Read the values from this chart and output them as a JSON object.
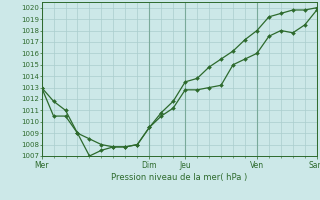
{
  "title": "Pression niveau de la mer( hPa )",
  "ylim": [
    1007,
    1020.5
  ],
  "yticks": [
    1007,
    1008,
    1009,
    1010,
    1011,
    1012,
    1013,
    1014,
    1015,
    1016,
    1017,
    1018,
    1019,
    1020
  ],
  "xlim": [
    0,
    23
  ],
  "xtick_labels": [
    "Mer",
    "Dim",
    "Jeu",
    "Ven",
    "Sam"
  ],
  "xtick_positions": [
    0,
    9,
    12,
    18,
    23
  ],
  "line1_x": [
    0,
    1,
    2,
    3,
    4,
    5,
    6,
    7,
    8,
    9,
    10,
    11,
    12,
    13,
    14,
    15,
    16,
    17,
    18,
    19,
    20,
    21,
    22,
    23
  ],
  "line1_y": [
    1013.0,
    1011.8,
    1011.0,
    1009.0,
    1008.5,
    1008.0,
    1007.8,
    1007.8,
    1008.0,
    1009.5,
    1010.5,
    1011.2,
    1012.8,
    1012.8,
    1013.0,
    1013.2,
    1015.0,
    1015.5,
    1016.0,
    1017.5,
    1018.0,
    1017.8,
    1018.5,
    1019.8
  ],
  "line2_x": [
    0,
    1,
    2,
    3,
    4,
    5,
    6,
    7,
    8,
    9,
    10,
    11,
    12,
    13,
    14,
    15,
    16,
    17,
    18,
    19,
    20,
    21,
    22,
    23
  ],
  "line2_y": [
    1013.0,
    1010.5,
    1010.5,
    1009.0,
    1007.0,
    1007.5,
    1007.8,
    1007.8,
    1008.0,
    1009.5,
    1010.8,
    1011.8,
    1013.5,
    1013.8,
    1014.8,
    1015.5,
    1016.2,
    1017.2,
    1018.0,
    1019.2,
    1019.5,
    1019.8,
    1019.8,
    1020.0
  ],
  "line_color": "#2d6a2d",
  "bg_color": "#cce8e8",
  "grid_color": "#aacece",
  "marker": "D",
  "marker_size": 2.0,
  "vlines": [
    0,
    9,
    12,
    18,
    23
  ]
}
